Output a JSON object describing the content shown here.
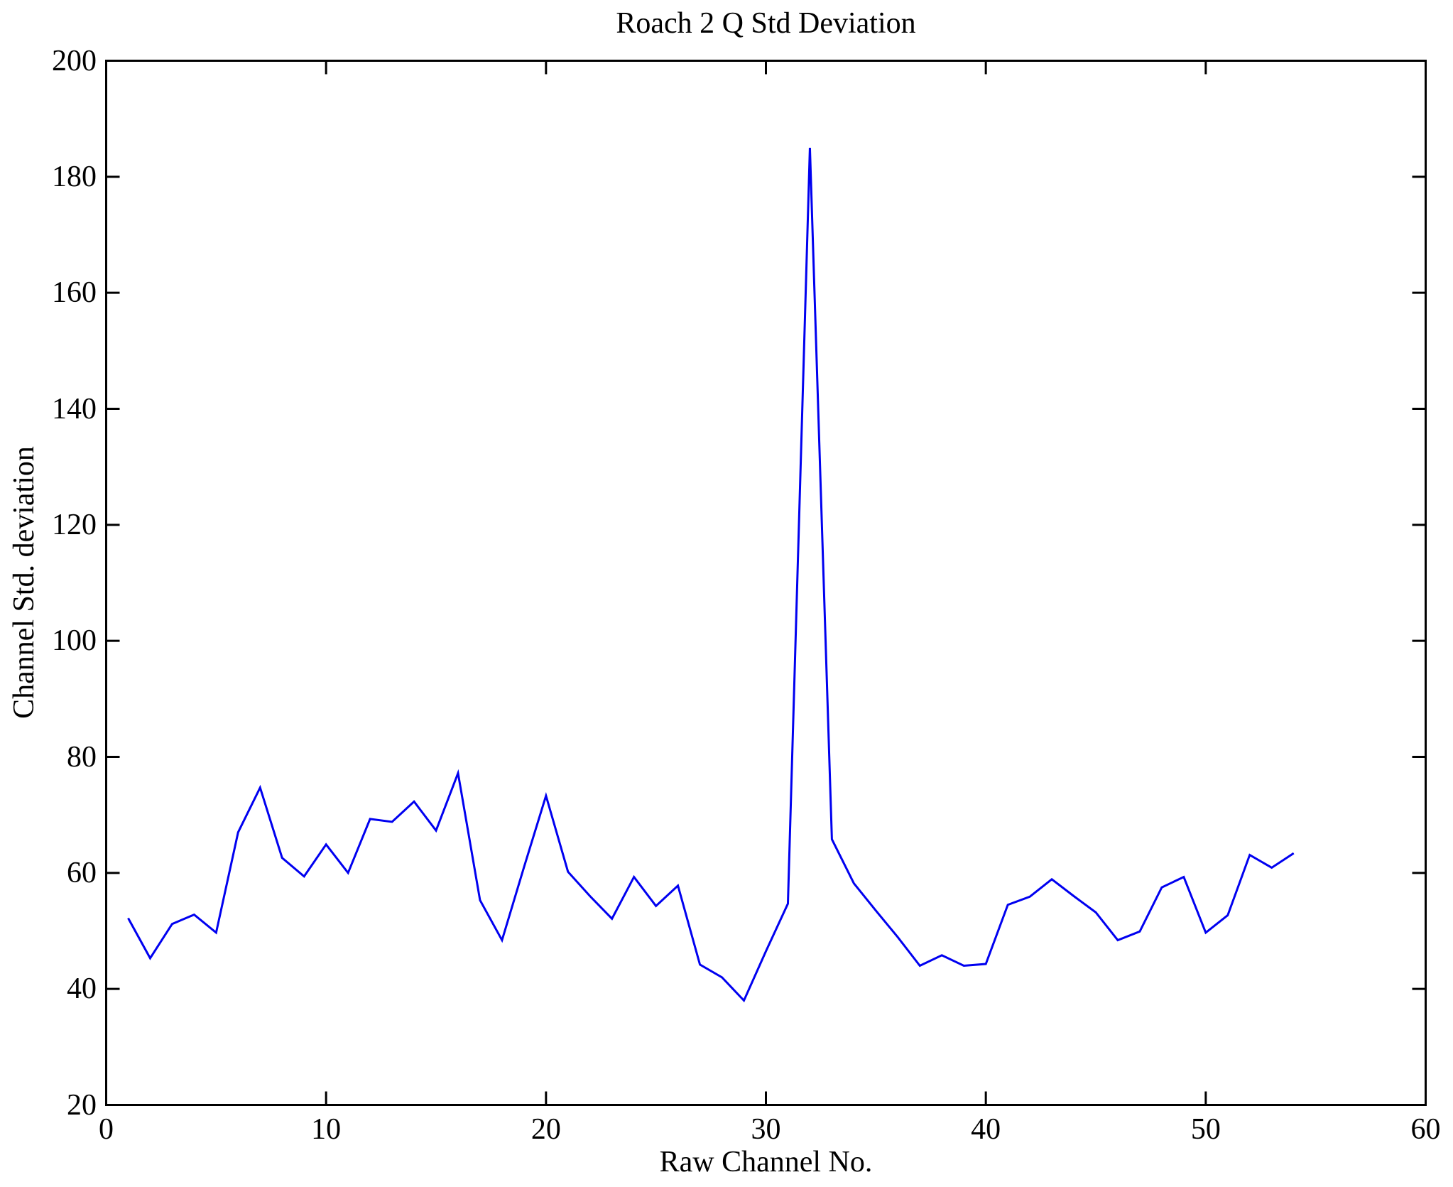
{
  "chart_data": {
    "type": "line",
    "title": "Roach 2 Q Std Deviation",
    "xlabel": "Raw Channel No.",
    "ylabel": "Channel Std. deviation",
    "xlim": [
      0,
      60
    ],
    "ylim": [
      20,
      200
    ],
    "x_ticks": [
      0,
      10,
      20,
      30,
      40,
      50,
      60
    ],
    "y_ticks": [
      20,
      40,
      60,
      80,
      100,
      120,
      140,
      160,
      180,
      200
    ],
    "grid": false,
    "legend": "none",
    "line_color": "#0000f0",
    "axis_color": "#000000",
    "background_color": "#ffffff",
    "series": [
      {
        "name": "Channel Std. deviation",
        "x": [
          1,
          2,
          3,
          4,
          5,
          6,
          7,
          8,
          9,
          10,
          11,
          12,
          13,
          14,
          15,
          16,
          17,
          18,
          19,
          20,
          21,
          22,
          23,
          24,
          25,
          26,
          27,
          28,
          29,
          30,
          31,
          32,
          33,
          34,
          35,
          36,
          37,
          38,
          39,
          40,
          41,
          42,
          43,
          44,
          45,
          46,
          47,
          48,
          49,
          50,
          51,
          52,
          53,
          54
        ],
        "y": [
          52.2,
          45.3,
          51.2,
          52.8,
          49.7,
          67.0,
          74.7,
          62.6,
          59.4,
          64.9,
          60.0,
          69.3,
          68.8,
          72.3,
          67.3,
          77.2,
          55.3,
          48.4,
          61.0,
          73.3,
          60.2,
          56.0,
          52.1,
          59.3,
          54.3,
          57.8,
          44.2,
          42.0,
          38.0,
          46.5,
          54.7,
          185.0,
          65.8,
          58.2,
          53.5,
          48.9,
          44.0,
          45.8,
          44.0,
          44.3,
          54.5,
          55.9,
          58.9,
          56.0,
          53.2,
          48.4,
          49.9,
          57.5,
          59.3,
          49.7,
          52.7,
          63.1,
          60.9,
          63.4
        ]
      }
    ]
  }
}
